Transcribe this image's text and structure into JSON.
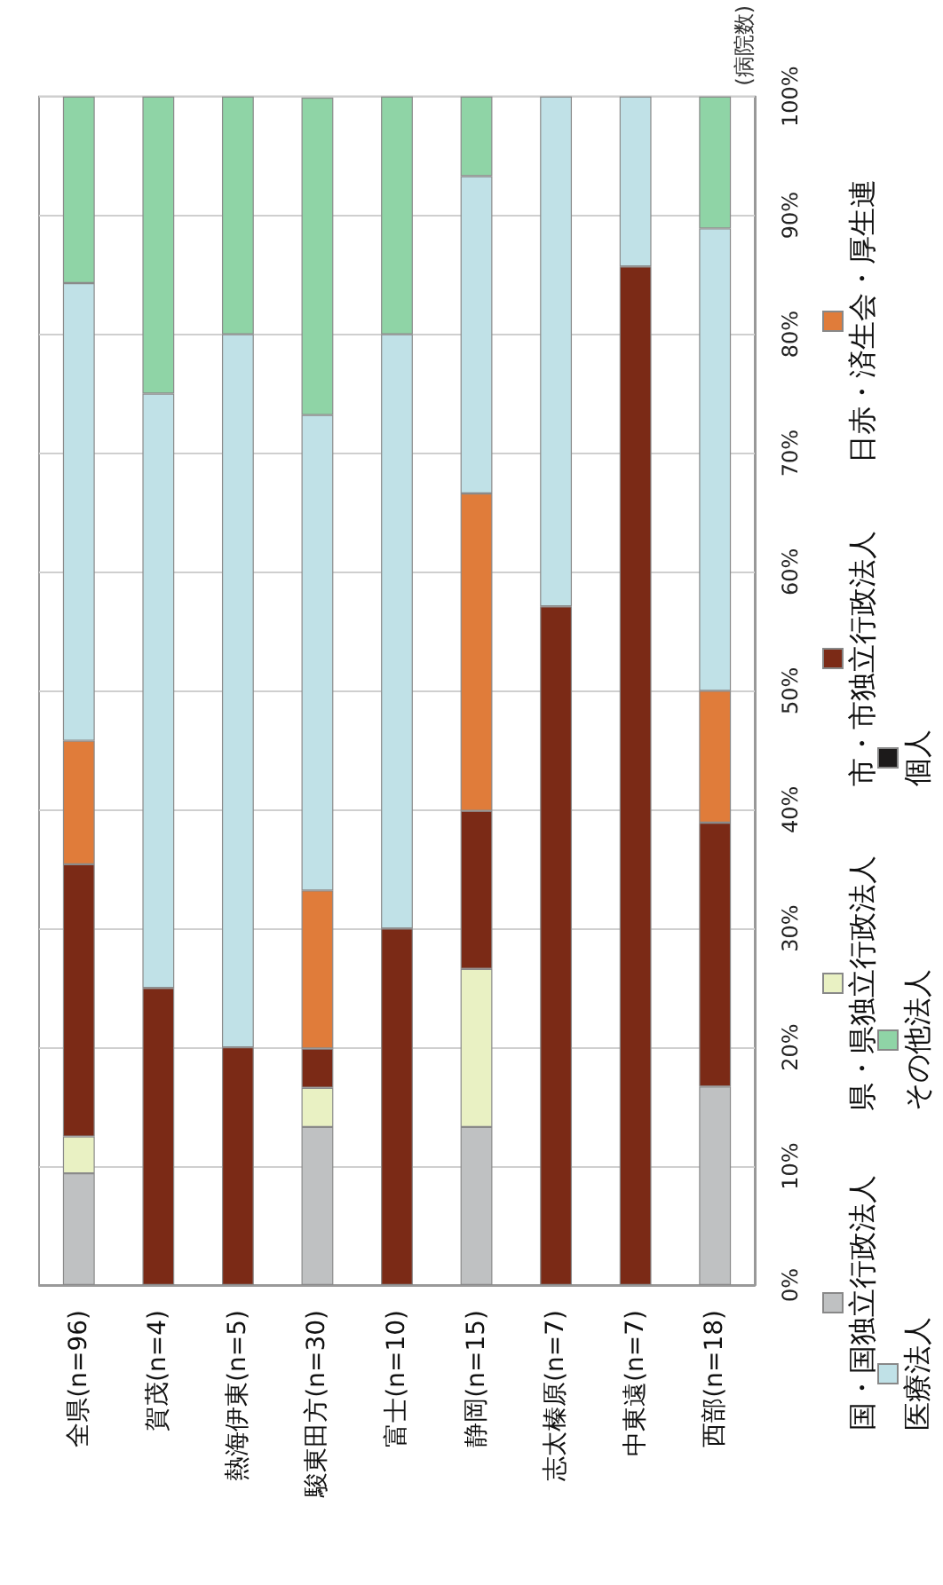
{
  "chart_data": {
    "type": "bar",
    "stacked": true,
    "ylabel": "(病院数)",
    "categories": [
      "全県(n=96)",
      "賀茂(n=4)",
      "熱海伊東(n=5)",
      "駿東田方(n=30)",
      "富士(n=10)",
      "静岡(n=15)",
      "志太榛原(n=7)",
      "中東遠(n=7)",
      "西部(n=18)"
    ],
    "series": [
      {
        "name": "国・国独立行政法人",
        "color": "#bfc1c2",
        "values": [
          9.4,
          null,
          null,
          13.3,
          null,
          13.3,
          null,
          null,
          16.7
        ]
      },
      {
        "name": "県・県独立行政法人",
        "color": "#e9f1c3",
        "values": [
          3.1,
          null,
          null,
          3.3,
          null,
          13.3,
          null,
          null,
          null
        ]
      },
      {
        "name": "市・市独立行政法人",
        "color": "#7b2a16",
        "values": [
          22.9,
          25,
          20,
          3.3,
          30,
          13.3,
          57.1,
          85.7,
          22.2
        ]
      },
      {
        "name": "日赤・済生会・厚生連",
        "color": "#e07c3a",
        "values": [
          10.4,
          null,
          null,
          13.3,
          null,
          26.7,
          null,
          null,
          11.1
        ]
      },
      {
        "name": "医療法人",
        "color": "#c0e1e7",
        "values": [
          38.5,
          50,
          60,
          40,
          50,
          26.7,
          42.9,
          14.3,
          38.9
        ]
      },
      {
        "name": "その他法人",
        "color": "#8fd4a6",
        "values": [
          15.7,
          25,
          20,
          26.7,
          20,
          6.7,
          null,
          null,
          11.1
        ]
      },
      {
        "name": "個人",
        "color": "#1c1a1a",
        "values": [
          null,
          null,
          null,
          null,
          null,
          null,
          null,
          null,
          null
        ]
      }
    ],
    "ylim": [
      0,
      100
    ],
    "yticks": [
      {
        "value": 0,
        "label": "0%"
      },
      {
        "value": 10,
        "label": "10%"
      },
      {
        "value": 20,
        "label": "20%"
      },
      {
        "value": 30,
        "label": "30%"
      },
      {
        "value": 40,
        "label": "40%"
      },
      {
        "value": 50,
        "label": "50%"
      },
      {
        "value": 60,
        "label": "60%"
      },
      {
        "value": 70,
        "label": "70%"
      },
      {
        "value": 80,
        "label": "80%"
      },
      {
        "value": 90,
        "label": "90%"
      },
      {
        "value": 100,
        "label": "100%"
      }
    ],
    "grid": "y",
    "legend": "right"
  }
}
